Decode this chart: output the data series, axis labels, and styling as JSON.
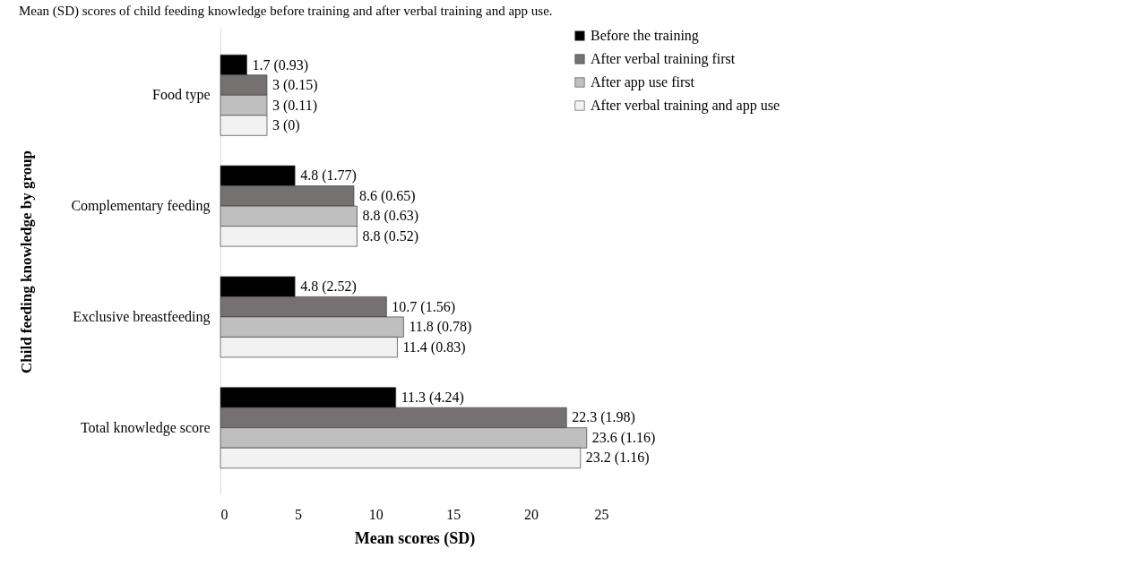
{
  "chart_data": {
    "type": "bar",
    "orientation": "horizontal",
    "title": "Mean (SD) scores of child feeding knowledge before training and after verbal training and app use.",
    "xlabel": "Mean scores (SD)",
    "ylabel": "Child feeding knowledge by group",
    "categories": [
      "Food type",
      "Complementary feeding",
      "Exclusive breastfeeding",
      "Total knowledge score"
    ],
    "series": [
      {
        "name": "Before the training",
        "color": "#000000",
        "values": [
          1.7,
          4.8,
          4.8,
          11.3
        ],
        "value_labels": [
          "1.7 (0.93)",
          "4.8 (1.77)",
          "4.8 (2.52)",
          "11.3 (4.24)"
        ]
      },
      {
        "name": "After verbal training first",
        "color": "#767171",
        "values": [
          3,
          8.6,
          10.7,
          22.3
        ],
        "value_labels": [
          "3 (0.15)",
          "8.6 (0.65)",
          "10.7 (1.56)",
          "22.3 (1.98)"
        ]
      },
      {
        "name": "After app use first",
        "color": "#bfbfbf",
        "values": [
          3,
          8.8,
          11.8,
          23.6
        ],
        "value_labels": [
          "3 (0.11)",
          "8.8 (0.63)",
          "11.8 (0.78)",
          "23.6 (1.16)"
        ]
      },
      {
        "name": "After verbal training and app use",
        "color": "#f2f2f2",
        "values": [
          3,
          8.8,
          11.4,
          23.2
        ],
        "value_labels": [
          "3 (0)",
          "8.8 (0.52)",
          "11.4 (0.83)",
          "23.2 (1.16)"
        ]
      }
    ],
    "xlim": [
      0,
      25
    ],
    "xticks": [
      0,
      5,
      10,
      15,
      20,
      25
    ],
    "grid": false,
    "legend": "right"
  }
}
